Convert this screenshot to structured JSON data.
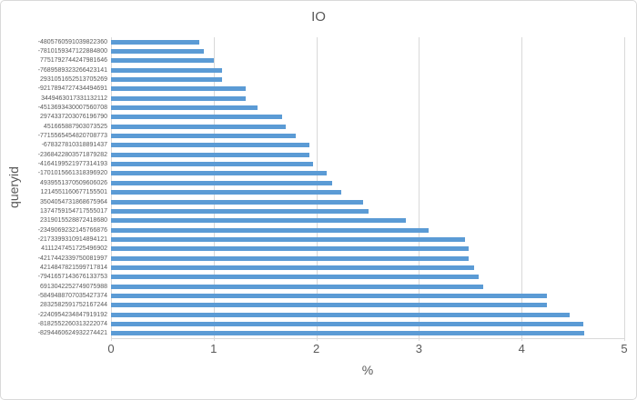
{
  "chart_data": {
    "type": "bar",
    "orientation": "horizontal",
    "title": "IO",
    "xlabel": "%",
    "ylabel": "queryid",
    "xlim": [
      0,
      5
    ],
    "xticks": [
      0,
      1,
      2,
      3,
      4,
      5
    ],
    "grid": true,
    "legend": false,
    "bar_color": "#5B9BD5",
    "gridline_color": "#D9D9D9",
    "text_color": "#595959",
    "categories": [
      "-4805760591039822360",
      "-7810159347122884800",
      "7751792744247981646",
      "-7689589323266423141",
      "2931051652513705269",
      "-9217894727434494691",
      "3449463017331132112",
      "-4513693430007560708",
      "2974337203076196790",
      "451665887903073525",
      "-7715565454820708773",
      "-678327810318891437",
      "-2368422803571879282",
      "-4164199521977314193",
      "-1701015661318396920",
      "4939551370509606026",
      "1214551160677155501",
      "3504054731868675964",
      "1374759154717555017",
      "2319015528872418680",
      "-2349069232145766876",
      "-2173399310914894121",
      "4111247451725496902",
      "-4217442339750081997",
      "4214847821599717814",
      "-7941657143676133753",
      "6913042252749075988",
      "-5849488707035427374",
      "2832582591752167244",
      "-2240954234847919192",
      "-8182552260313222074",
      "-8294460624932274421"
    ],
    "values": [
      0.86,
      0.9,
      1.0,
      1.08,
      1.08,
      1.31,
      1.31,
      1.43,
      1.67,
      1.7,
      1.8,
      1.93,
      1.93,
      1.97,
      2.1,
      2.15,
      2.24,
      2.46,
      2.51,
      2.87,
      3.09,
      3.45,
      3.48,
      3.48,
      3.54,
      3.58,
      3.63,
      4.25,
      4.25,
      4.47,
      4.6,
      4.61
    ]
  }
}
